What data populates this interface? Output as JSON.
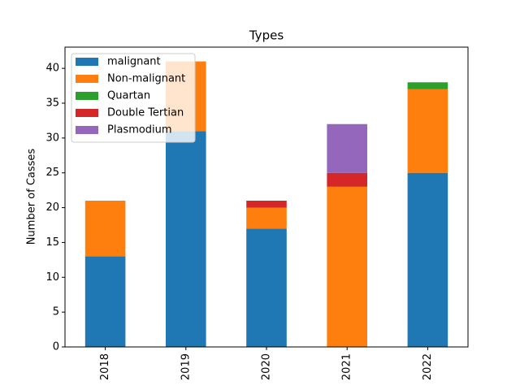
{
  "chart_data": {
    "type": "stacked_bar",
    "title": "Types",
    "y_label": "Number of Casses",
    "categories": [
      "2018",
      "2019",
      "2020",
      "2021",
      "2022"
    ],
    "series": [
      {
        "name": "malignant",
        "color": "#1f77b4",
        "values": [
          13,
          31,
          17,
          0,
          25
        ]
      },
      {
        "name": "Non-malignant",
        "color": "#ff7f0e",
        "values": [
          8,
          10,
          3,
          23,
          12
        ]
      },
      {
        "name": "Quartan",
        "color": "#2ca02c",
        "values": [
          0,
          0,
          0,
          0,
          1
        ]
      },
      {
        "name": "Double Tertian",
        "color": "#d62728",
        "values": [
          0,
          0,
          1,
          2,
          0
        ]
      },
      {
        "name": "Plasmodium",
        "color": "#9467bd",
        "values": [
          0,
          0,
          0,
          7,
          0
        ]
      }
    ],
    "ylim": [
      0,
      43.05
    ],
    "yticks": [
      0,
      5,
      10,
      15,
      20,
      25,
      30,
      35,
      40
    ],
    "legend": "upper left",
    "grid": false
  }
}
